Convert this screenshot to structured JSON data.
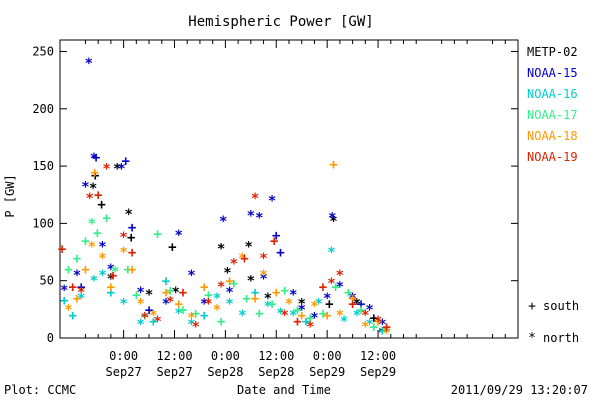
{
  "chart_data": {
    "type": "scatter",
    "title": "Hemispheric Power [GW]",
    "xlabel": "Date and Time",
    "ylabel": "P [GW]",
    "xlim": [
      -15,
      93
    ],
    "ylim": [
      0,
      260
    ],
    "x_unit": "hours from 2011-09-27 00:00 UT",
    "yticks": [
      0,
      50,
      100,
      150,
      200,
      250
    ],
    "xticks": [
      {
        "x": 0,
        "time": "0:00",
        "date": "Sep27"
      },
      {
        "x": 12,
        "time": "12:00",
        "date": "Sep27"
      },
      {
        "x": 24,
        "time": "0:00",
        "date": "Sep28"
      },
      {
        "x": 36,
        "time": "12:00",
        "date": "Sep28"
      },
      {
        "x": 48,
        "time": "0:00",
        "date": "Sep29"
      },
      {
        "x": 60,
        "time": "12:00",
        "date": "Sep29"
      }
    ],
    "marker_legend": [
      {
        "symbol": "+",
        "label": "south"
      },
      {
        "symbol": "*",
        "label": "north"
      }
    ],
    "footer_left": "Plot: CCMC",
    "footer_right": "2011/09/29 13:20:07",
    "series": [
      {
        "name": "METP-02",
        "color": "#000000",
        "points": [
          [
            -7.2,
            131,
            "*"
          ],
          [
            -6.7,
            142,
            "+"
          ],
          [
            -5.2,
            117,
            "+"
          ],
          [
            -3,
            52,
            "*"
          ],
          [
            -1.5,
            148,
            "*"
          ],
          [
            1.2,
            108,
            "*"
          ],
          [
            1.8,
            88,
            "+"
          ],
          [
            6,
            38,
            "*"
          ],
          [
            11.5,
            80,
            "+"
          ],
          [
            12.3,
            40,
            "*"
          ],
          [
            23,
            78,
            "*"
          ],
          [
            24.5,
            57,
            "*"
          ],
          [
            29.5,
            80,
            "*"
          ],
          [
            30,
            50,
            "*"
          ],
          [
            34,
            35,
            "*"
          ],
          [
            42,
            30,
            "*"
          ],
          [
            48.5,
            30,
            "+"
          ],
          [
            49.5,
            102,
            "*"
          ],
          [
            55,
            30,
            "*"
          ],
          [
            59,
            18,
            "+"
          ],
          [
            61,
            5,
            "*"
          ]
        ]
      },
      {
        "name": "NOAA-15",
        "color": "#0000cc",
        "points": [
          [
            -14,
            42,
            "*"
          ],
          [
            -11,
            55,
            "*"
          ],
          [
            -10,
            45,
            "+"
          ],
          [
            -9,
            132,
            "*"
          ],
          [
            -8.2,
            240,
            "*"
          ],
          [
            -7,
            157,
            "*"
          ],
          [
            -6.5,
            158,
            "+"
          ],
          [
            -5,
            80,
            "*"
          ],
          [
            -3,
            60,
            "*"
          ],
          [
            -0.5,
            148,
            "*"
          ],
          [
            0.5,
            155,
            "+"
          ],
          [
            2,
            97,
            "+"
          ],
          [
            4,
            40,
            "*"
          ],
          [
            6,
            25,
            "+"
          ],
          [
            10,
            30,
            "*"
          ],
          [
            13,
            90,
            "*"
          ],
          [
            16,
            55,
            "*"
          ],
          [
            19,
            30,
            "*"
          ],
          [
            23.5,
            102,
            "*"
          ],
          [
            25,
            40,
            "*"
          ],
          [
            30,
            107,
            "*"
          ],
          [
            32,
            105,
            "*"
          ],
          [
            33,
            52,
            "*"
          ],
          [
            35,
            120,
            "*"
          ],
          [
            36,
            90,
            "+"
          ],
          [
            37,
            75,
            "+"
          ],
          [
            40,
            38,
            "*"
          ],
          [
            42,
            25,
            "*"
          ],
          [
            45,
            18,
            "*"
          ],
          [
            48,
            35,
            "*"
          ],
          [
            49.2,
            105,
            "*"
          ],
          [
            51,
            45,
            "*"
          ],
          [
            54,
            35,
            "*"
          ],
          [
            56,
            30,
            "+"
          ],
          [
            58,
            25,
            "*"
          ],
          [
            61,
            12,
            "*"
          ]
        ]
      },
      {
        "name": "NOAA-16",
        "color": "#00cccc",
        "points": [
          [
            -14,
            33,
            "+"
          ],
          [
            -12,
            20,
            "+"
          ],
          [
            -10,
            35,
            "*"
          ],
          [
            -7,
            50,
            "*"
          ],
          [
            -5,
            55,
            "*"
          ],
          [
            -3,
            40,
            "+"
          ],
          [
            0,
            30,
            "*"
          ],
          [
            4,
            12,
            "*"
          ],
          [
            7,
            15,
            "+"
          ],
          [
            10,
            50,
            "+"
          ],
          [
            13,
            22,
            "*"
          ],
          [
            16,
            12,
            "*"
          ],
          [
            19,
            20,
            "+"
          ],
          [
            22,
            35,
            "*"
          ],
          [
            25,
            30,
            "*"
          ],
          [
            28,
            20,
            "*"
          ],
          [
            31,
            40,
            "+"
          ],
          [
            34,
            28,
            "*"
          ],
          [
            37,
            22,
            "*"
          ],
          [
            40,
            20,
            "*"
          ],
          [
            43,
            15,
            "+"
          ],
          [
            46,
            30,
            "*"
          ],
          [
            49,
            75,
            "*"
          ],
          [
            52,
            15,
            "*"
          ],
          [
            55,
            20,
            "*"
          ],
          [
            58,
            12,
            "*"
          ],
          [
            61,
            7,
            "+"
          ]
        ]
      },
      {
        "name": "NOAA-17",
        "color": "#33ee88",
        "points": [
          [
            -13,
            60,
            "+"
          ],
          [
            -11,
            70,
            "+"
          ],
          [
            -9,
            85,
            "+"
          ],
          [
            -7.5,
            100,
            "*"
          ],
          [
            -6.2,
            92,
            "+"
          ],
          [
            -4,
            105,
            "+"
          ],
          [
            -2,
            58,
            "*"
          ],
          [
            1,
            60,
            "+"
          ],
          [
            3,
            38,
            "+"
          ],
          [
            5,
            20,
            "+"
          ],
          [
            8,
            91,
            "+"
          ],
          [
            11,
            42,
            "+"
          ],
          [
            14,
            25,
            "+"
          ],
          [
            17,
            22,
            "+"
          ],
          [
            20,
            38,
            "+"
          ],
          [
            23,
            15,
            "+"
          ],
          [
            26,
            48,
            "+"
          ],
          [
            29,
            35,
            "+"
          ],
          [
            32,
            22,
            "+"
          ],
          [
            35,
            30,
            "+"
          ],
          [
            38,
            42,
            "+"
          ],
          [
            41,
            25,
            "+"
          ],
          [
            44,
            18,
            "+"
          ],
          [
            47,
            22,
            "+"
          ],
          [
            50,
            45,
            "+"
          ],
          [
            53,
            40,
            "+"
          ],
          [
            56,
            25,
            "+"
          ],
          [
            59,
            10,
            "+"
          ],
          [
            62,
            8,
            "+"
          ]
        ]
      },
      {
        "name": "NOAA-18",
        "color": "#ff9900",
        "points": [
          [
            -13,
            25,
            "*"
          ],
          [
            -11,
            35,
            "+"
          ],
          [
            -9,
            60,
            "+"
          ],
          [
            -7.5,
            80,
            "*"
          ],
          [
            -6.8,
            145,
            "+"
          ],
          [
            -5,
            70,
            "*"
          ],
          [
            -3,
            45,
            "+"
          ],
          [
            0,
            75,
            "*"
          ],
          [
            2,
            60,
            "+"
          ],
          [
            4,
            30,
            "*"
          ],
          [
            7,
            20,
            "*"
          ],
          [
            10,
            40,
            "+"
          ],
          [
            13,
            30,
            "+"
          ],
          [
            16,
            18,
            "*"
          ],
          [
            19,
            45,
            "+"
          ],
          [
            22,
            25,
            "*"
          ],
          [
            25,
            50,
            "+"
          ],
          [
            28,
            70,
            "*"
          ],
          [
            31,
            35,
            "+"
          ],
          [
            33,
            55,
            "*"
          ],
          [
            36,
            40,
            "+"
          ],
          [
            39,
            30,
            "*"
          ],
          [
            42,
            20,
            "+"
          ],
          [
            45,
            28,
            "*"
          ],
          [
            48,
            20,
            "+"
          ],
          [
            49.5,
            152,
            "+"
          ],
          [
            51,
            20,
            "*"
          ],
          [
            54,
            35,
            "+"
          ],
          [
            57,
            10,
            "*"
          ],
          [
            60,
            15,
            "+"
          ],
          [
            62,
            5,
            "*"
          ]
        ]
      },
      {
        "name": "NOAA-19",
        "color": "#dd2200",
        "points": [
          [
            -14.5,
            78,
            "+"
          ],
          [
            -12,
            45,
            "+"
          ],
          [
            -10,
            40,
            "*"
          ],
          [
            -8,
            122,
            "*"
          ],
          [
            -6,
            125,
            "+"
          ],
          [
            -4,
            148,
            "*"
          ],
          [
            -2.5,
            55,
            "+"
          ],
          [
            0,
            88,
            "*"
          ],
          [
            2,
            75,
            "+"
          ],
          [
            5,
            18,
            "*"
          ],
          [
            8,
            15,
            "*"
          ],
          [
            11,
            32,
            "*"
          ],
          [
            14,
            40,
            "+"
          ],
          [
            17,
            10,
            "*"
          ],
          [
            20,
            30,
            "*"
          ],
          [
            23,
            45,
            "*"
          ],
          [
            26,
            65,
            "*"
          ],
          [
            28.5,
            70,
            "+"
          ],
          [
            31,
            122,
            "*"
          ],
          [
            33,
            70,
            "*"
          ],
          [
            35.5,
            85,
            "+"
          ],
          [
            38,
            20,
            "*"
          ],
          [
            41,
            15,
            "+"
          ],
          [
            44,
            10,
            "*"
          ],
          [
            47,
            45,
            "+"
          ],
          [
            49,
            48,
            "*"
          ],
          [
            51,
            55,
            "*"
          ],
          [
            54,
            30,
            "+"
          ],
          [
            57,
            20,
            "*"
          ],
          [
            60,
            15,
            "*"
          ],
          [
            62,
            10,
            "+"
          ]
        ]
      }
    ]
  }
}
